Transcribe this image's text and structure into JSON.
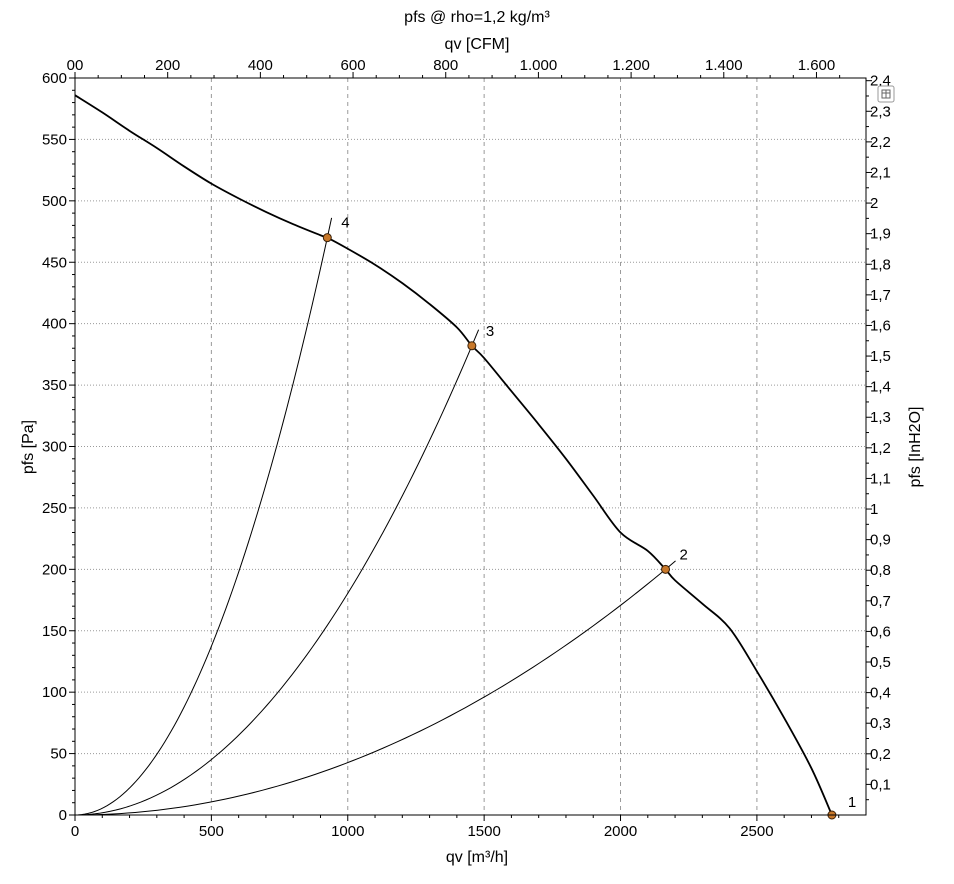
{
  "chart_data": {
    "type": "line",
    "title": "pfs @ rho=1,2 kg/m³",
    "xlabel": "qv [m³/h]",
    "ylabel": "pfs [Pa]",
    "x2label": "qv [CFM]",
    "y2label": "pfs [InH2O]",
    "xlim": [
      0,
      2900
    ],
    "ylim": [
      0,
      600
    ],
    "x_ticks": [
      0,
      500,
      1000,
      1500,
      2000,
      2500
    ],
    "x_tick_labels": [
      "0",
      "500",
      "1000",
      "1500",
      "2000",
      "2500"
    ],
    "y_ticks": [
      0,
      50,
      100,
      150,
      200,
      250,
      300,
      350,
      400,
      450,
      500,
      550,
      600
    ],
    "y_tick_labels": [
      "0",
      "50",
      "100",
      "150",
      "200",
      "250",
      "300",
      "350",
      "400",
      "450",
      "500",
      "550",
      "600"
    ],
    "x2_ticks_cfm": [
      0,
      200,
      400,
      600,
      800,
      1000,
      1200,
      1400,
      1600
    ],
    "x2_tick_labels": [
      "00",
      "200",
      "400",
      "600",
      "800",
      "1.000",
      "1.200",
      "1.400",
      "1.600"
    ],
    "y2_ticks_inh2o": [
      0.1,
      0.2,
      0.3,
      0.4,
      0.5,
      0.6,
      0.7,
      0.8,
      0.9,
      1.0,
      1.1,
      1.2,
      1.3,
      1.4,
      1.5,
      1.6,
      1.7,
      1.8,
      1.9,
      2.0,
      2.1,
      2.2,
      2.3,
      2.4
    ],
    "y2_tick_labels": [
      "0,1",
      "0,2",
      "0,3",
      "0,4",
      "0,5",
      "0,6",
      "0,7",
      "0,8",
      "0,9",
      "1",
      "1,1",
      "1,2",
      "1,3",
      "1,4",
      "1,5",
      "1,6",
      "1,7",
      "1,8",
      "1,9",
      "2",
      "2,1",
      "2,2",
      "2,3",
      "2,4"
    ],
    "grid": true,
    "fan_curve": {
      "x": [
        0,
        100,
        200,
        300,
        400,
        500,
        600,
        700,
        800,
        900,
        925,
        1000,
        1100,
        1200,
        1300,
        1400,
        1455,
        1500,
        1600,
        1700,
        1800,
        1900,
        2000,
        2100,
        2165,
        2200,
        2300,
        2400,
        2500,
        2600,
        2700,
        2775
      ],
      "y": [
        586,
        572,
        557,
        543,
        528,
        514,
        502,
        491,
        481,
        472,
        470,
        461,
        448,
        433,
        416,
        397,
        382,
        372,
        345,
        318,
        290,
        260,
        230,
        215,
        200,
        191,
        172,
        152,
        117,
        79,
        38,
        0
      ]
    },
    "operating_points": [
      {
        "label": "1",
        "x": 2775,
        "y": 0
      },
      {
        "label": "2",
        "x": 2165,
        "y": 200
      },
      {
        "label": "3",
        "x": 1455,
        "y": 382
      },
      {
        "label": "4",
        "x": 925,
        "y": 470
      }
    ],
    "system_curves_through_points": [
      "2",
      "3",
      "4"
    ]
  },
  "ui": {
    "menu_icon": "chart-menu-icon"
  }
}
